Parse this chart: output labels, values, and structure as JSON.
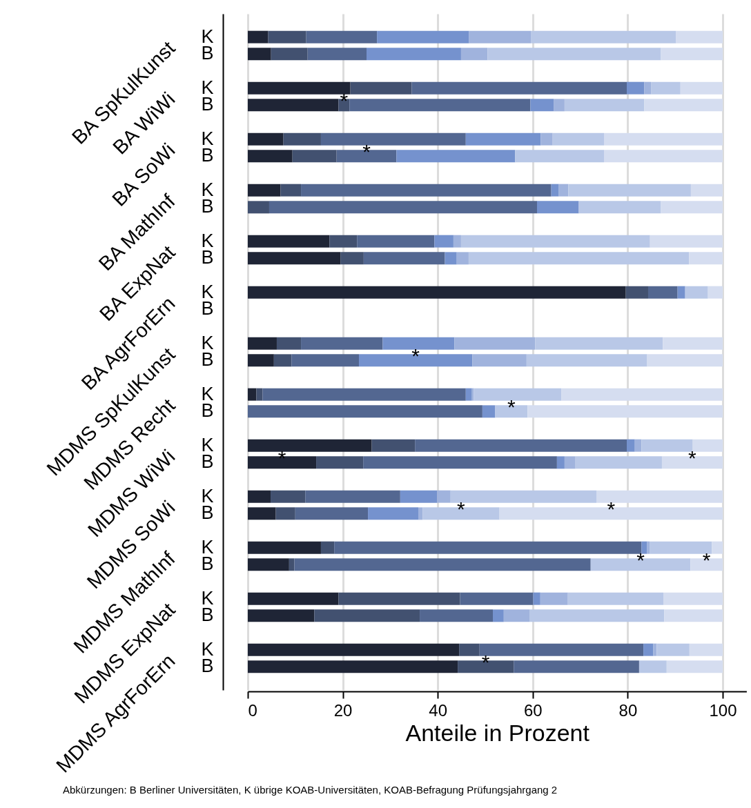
{
  "chart_data": {
    "type": "bar",
    "orientation": "horizontal",
    "stacked": true,
    "categories": [
      "K",
      "B",
      "K",
      "B",
      "K",
      "B",
      "K",
      "B",
      "K",
      "B",
      "K",
      "B",
      "K",
      "B",
      "K",
      "B",
      "K",
      "B",
      "K",
      "B",
      "K",
      "B",
      "K",
      "B",
      "K",
      "B"
    ],
    "series": [
      {
        "color": "#1f2536",
        "values": [
          4.3,
          4.9,
          21.6,
          19.1,
          7.5,
          9.4,
          6.9,
          0,
          17.2,
          19.5,
          79.6,
          null,
          6.1,
          5.5,
          1.8,
          0,
          26.1,
          14.4,
          4.8,
          5.9,
          15.4,
          8.7,
          19.1,
          14.0,
          44.5,
          44.2
        ],
        "value_labels": [
          null,
          null,
          null,
          null,
          null,
          null,
          null,
          null,
          null,
          null,
          null,
          null,
          null,
          null,
          null,
          null,
          null,
          "*",
          null,
          null,
          null,
          null,
          null,
          null,
          null,
          null
        ]
      },
      {
        "color": "#425170",
        "values": [
          8.0,
          7.7,
          12.9,
          2.3,
          7.9,
          9.3,
          4.3,
          4.5,
          5.8,
          4.9,
          4.7,
          null,
          5.1,
          3.7,
          1.3,
          0,
          9.1,
          9.9,
          7.3,
          4.1,
          2.8,
          1.1,
          25.6,
          22.2,
          4.3,
          11.8
        ],
        "value_labels": [
          null,
          null,
          null,
          "*",
          null,
          null,
          null,
          null,
          null,
          null,
          null,
          null,
          null,
          null,
          null,
          null,
          null,
          null,
          null,
          null,
          null,
          null,
          null,
          null,
          null,
          "*"
        ]
      },
      {
        "color": "#536791",
        "values": [
          14.9,
          12.4,
          45.3,
          38.1,
          30.5,
          12.6,
          52.7,
          56.4,
          16.3,
          17.1,
          6.2,
          null,
          17.2,
          14.2,
          42.8,
          49.4,
          44.6,
          40.8,
          20.0,
          15.3,
          64.7,
          62.4,
          15.4,
          15.4,
          34.5,
          26.4
        ],
        "value_labels": [
          null,
          null,
          null,
          null,
          null,
          "*",
          null,
          null,
          null,
          null,
          null,
          null,
          null,
          null,
          null,
          null,
          null,
          null,
          null,
          null,
          null,
          null,
          null,
          null,
          null,
          null
        ]
      },
      {
        "color": "#7592ce",
        "values": [
          19.4,
          19.9,
          3.7,
          4.9,
          15.8,
          25.0,
          1.6,
          8.8,
          4.0,
          2.5,
          1.6,
          null,
          15.1,
          23.9,
          1.3,
          2.7,
          1.7,
          1.6,
          7.8,
          10.6,
          1.2,
          0,
          1.5,
          2.3,
          2.1,
          0
        ],
        "value_labels": [
          null,
          null,
          null,
          null,
          null,
          null,
          null,
          null,
          null,
          null,
          null,
          null,
          null,
          "*",
          null,
          null,
          null,
          null,
          null,
          null,
          null,
          null,
          null,
          null,
          null,
          null
        ]
      },
      {
        "color": "#a0b3dd",
        "values": [
          13.0,
          5.6,
          1.4,
          2.3,
          2.5,
          0,
          2.0,
          0,
          1.6,
          2.5,
          0,
          null,
          17.0,
          11.4,
          0.4,
          0,
          1.4,
          2.3,
          2.8,
          0.9,
          0.5,
          0,
          5.8,
          5.4,
          0.7,
          0
        ]
      },
      {
        "color": "#b9c8e7",
        "values": [
          30.6,
          36.5,
          6.2,
          16.8,
          10.8,
          18.7,
          25.8,
          17.3,
          39.8,
          46.4,
          4.8,
          null,
          26.9,
          25.4,
          18.4,
          6.8,
          10.8,
          18.2,
          30.7,
          16.2,
          13.1,
          21.0,
          20.1,
          28.4,
          6.9,
          5.8
        ],
        "value_labels": [
          null,
          null,
          null,
          null,
          null,
          null,
          null,
          null,
          null,
          null,
          null,
          null,
          null,
          null,
          null,
          "*",
          null,
          null,
          null,
          "*",
          null,
          "*",
          null,
          null,
          null,
          null
        ]
      },
      {
        "color": "#d5ddf0",
        "values": [
          9.8,
          13.0,
          8.9,
          16.5,
          25.0,
          25.0,
          6.7,
          13.0,
          15.3,
          7.1,
          3.1,
          null,
          12.6,
          15.9,
          34.0,
          41.1,
          6.3,
          12.8,
          26.6,
          47.0,
          2.3,
          6.8,
          12.5,
          12.3,
          7.0,
          11.8
        ],
        "value_labels": [
          null,
          null,
          null,
          null,
          null,
          null,
          null,
          null,
          null,
          null,
          null,
          null,
          null,
          null,
          null,
          null,
          null,
          "*",
          null,
          "*",
          null,
          "*",
          null,
          null,
          null,
          null
        ]
      }
    ],
    "xlim": [
      0,
      105
    ],
    "xticks": [
      0,
      20,
      40,
      60,
      80,
      100
    ],
    "xlabel": "Anteile in Prozent",
    "grid": "x",
    "annotations": [
      "BA SpKulKunst",
      "BA WiWi",
      "BA SoWi",
      "BA MathInf",
      "BA ExpNat",
      "BA AgrForErn",
      "MDMS SpKulKunst",
      "MDMS Recht",
      "MDMS WiWi",
      "MDMS SoWi",
      "MDMS MathInf",
      "MDMS ExpNat",
      "MDMS AgrForErn",
      "Abkürzungen: B Berliner Universitäten, K übrige KOAB-Universitäten, KOAB-Befragung Prüfungsjahrgang 2"
    ]
  }
}
